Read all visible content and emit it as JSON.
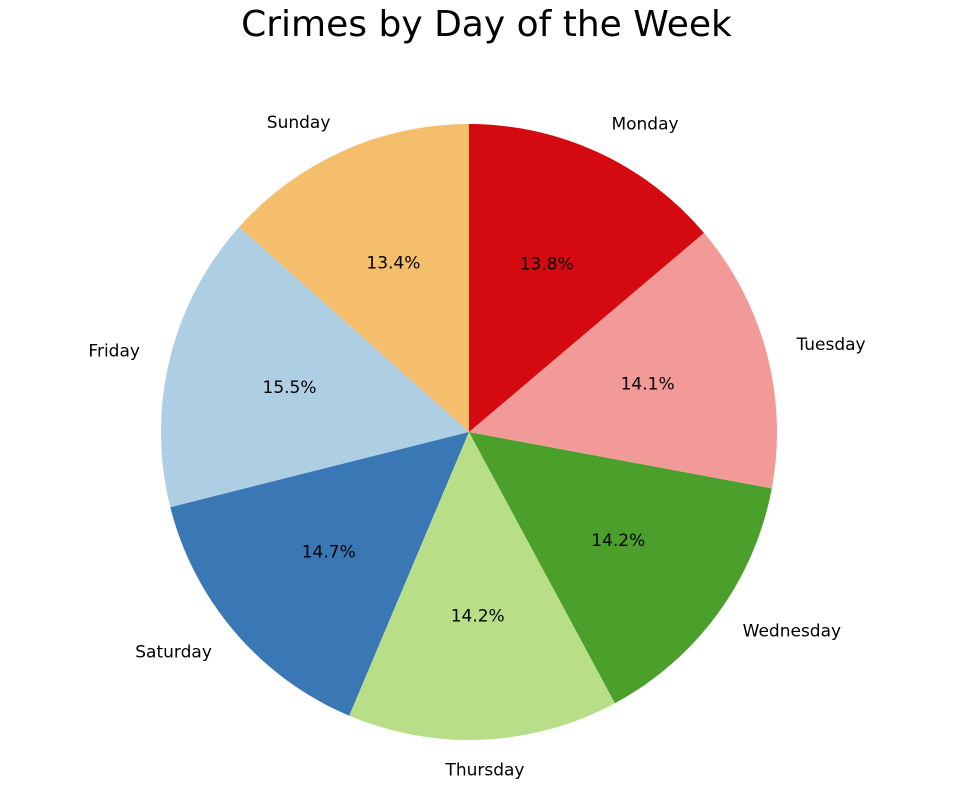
{
  "chart_data": {
    "type": "pie",
    "title": "Crimes by Day of the Week",
    "start_angle_deg": 90,
    "direction": "counterclockwise",
    "slices": [
      {
        "label": "Sunday",
        "value": 13.4,
        "pct_label": "13.4%",
        "color": "#f4be6c"
      },
      {
        "label": "Friday",
        "value": 15.5,
        "pct_label": "15.5%",
        "color": "#aecfe3"
      },
      {
        "label": "Saturday",
        "value": 14.7,
        "pct_label": "14.7%",
        "color": "#3a78b5"
      },
      {
        "label": "Thursday",
        "value": 14.2,
        "pct_label": "14.2%",
        "color": "#b8df88"
      },
      {
        "label": "Wednesday",
        "value": 14.2,
        "pct_label": "14.2%",
        "color": "#4aa02a"
      },
      {
        "label": "Tuesday",
        "value": 14.1,
        "pct_label": "14.1%",
        "color": "#f29a98"
      },
      {
        "label": "Monday",
        "value": 13.8,
        "pct_label": "13.8%",
        "color": "#d50a10"
      }
    ]
  }
}
